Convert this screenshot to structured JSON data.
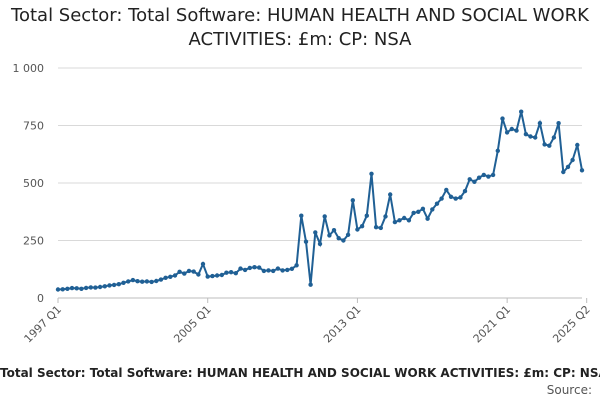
{
  "chart_data": {
    "type": "line",
    "title": "Total Sector: Total Software: HUMAN HEALTH AND SOCIAL WORK ACTIVITIES: £m: CP: NSA",
    "xlabel": "",
    "ylabel": "",
    "ylim": [
      0,
      1000
    ],
    "yticks": [
      0,
      250,
      500,
      750,
      1000
    ],
    "ytick_labels": [
      "0",
      "250",
      "500",
      "750",
      "1 000"
    ],
    "xtick_labels": [
      "1997 Q1",
      "2005 Q1",
      "2013 Q1",
      "2021 Q1",
      "2025 Q2"
    ],
    "xtick_positions": [
      0,
      32,
      64,
      96,
      113
    ],
    "grid": true,
    "line_color": "#206095",
    "series": [
      {
        "x_start": "1997 Q1",
        "values": [
          37,
          38,
          40,
          43,
          42,
          40,
          44,
          46,
          45,
          48,
          51,
          55,
          57,
          60,
          66,
          72,
          78,
          73,
          71,
          72,
          70,
          74,
          80,
          88,
          92,
          98,
          114,
          106,
          118,
          115,
          102,
          148,
          93,
          95,
          98,
          100,
          110,
          112,
          108,
          128,
          122,
          131,
          134,
          132,
          118,
          120,
          118,
          128,
          120,
          122,
          127,
          142,
          358,
          245,
          58,
          285,
          235,
          355,
          272,
          295,
          260,
          250,
          275,
          425,
          298,
          312,
          358,
          540,
          308,
          305,
          355,
          450,
          330,
          338,
          348,
          338,
          370,
          375,
          388,
          345,
          385,
          410,
          432,
          470,
          440,
          432,
          437,
          465,
          516,
          505,
          523,
          535,
          528,
          535,
          640,
          780,
          720,
          735,
          728,
          810,
          712,
          702,
          698,
          760,
          668,
          662,
          698,
          760,
          548,
          570,
          600,
          665,
          555
        ]
      }
    ]
  },
  "footer": {
    "title": "Total Sector: Total Software: HUMAN HEALTH AND SOCIAL WORK ACTIVITIES: £m: CP: NSA",
    "source": "Source:"
  }
}
